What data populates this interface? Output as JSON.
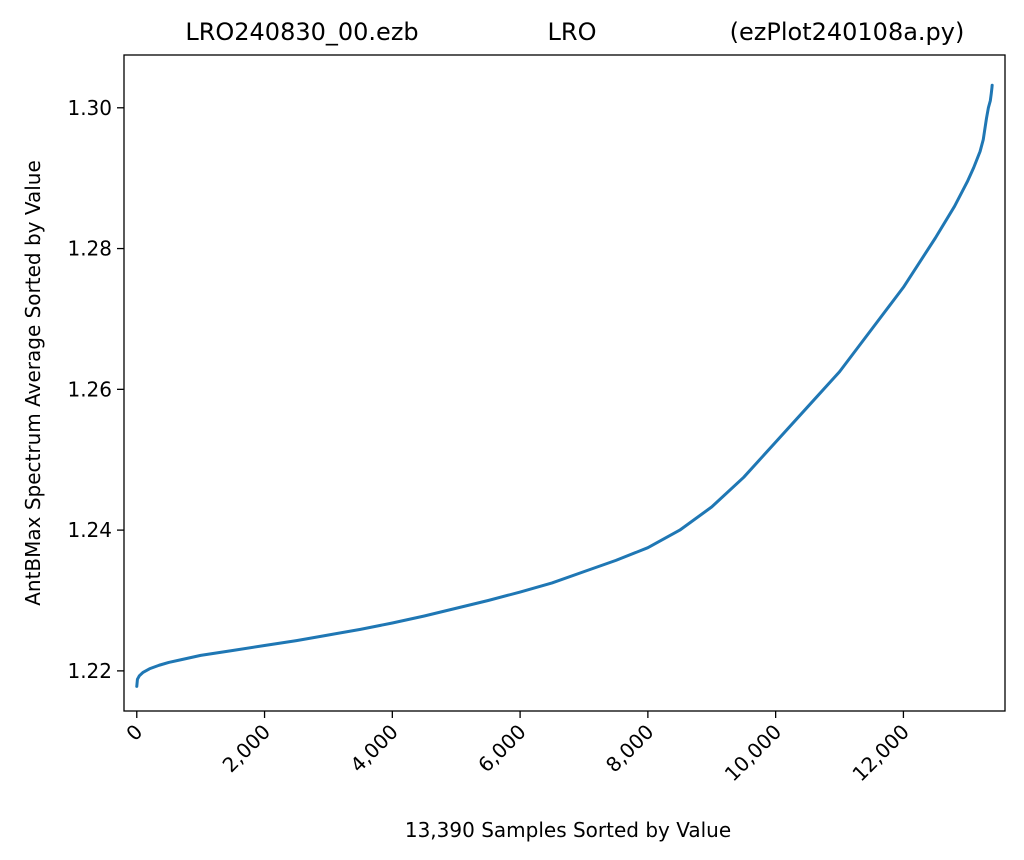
{
  "chart_data": {
    "type": "line",
    "title_parts": [
      "LRO240830_00.ezb",
      "LRO",
      "(ezPlot240108a.py)"
    ],
    "xlabel": "13,390 Samples Sorted by Value",
    "ylabel": "AntBMax Spectrum Average Sorted by Value",
    "xlim": [
      -200,
      13590
    ],
    "ylim": [
      1.2143,
      1.3075
    ],
    "xticks": [
      0,
      2000,
      4000,
      6000,
      8000,
      10000,
      12000
    ],
    "xtick_labels": [
      "0",
      "2,000",
      "4,000",
      "6,000",
      "8,000",
      "10,000",
      "12,000"
    ],
    "yticks": [
      1.22,
      1.24,
      1.26,
      1.28,
      1.3
    ],
    "ytick_labels": [
      "1.22",
      "1.24",
      "1.26",
      "1.28",
      "1.30"
    ],
    "grid": false,
    "line_color": "#1f77b4",
    "series": [
      {
        "x": [
          0,
          10,
          40,
          100,
          200,
          350,
          500,
          700,
          1000,
          1500,
          2000,
          2500,
          3000,
          3500,
          4000,
          4500,
          5000,
          5500,
          6000,
          6500,
          7000,
          7500,
          8000,
          8500,
          9000,
          9500,
          10000,
          10500,
          11000,
          11500,
          12000,
          12500,
          12800,
          13000,
          13100,
          13200,
          13250,
          13300,
          13330,
          13360,
          13375,
          13385,
          13389
        ],
        "y": [
          1.2178,
          1.2188,
          1.2193,
          1.2198,
          1.2203,
          1.2208,
          1.2212,
          1.2216,
          1.2222,
          1.2229,
          1.2236,
          1.2243,
          1.2251,
          1.2259,
          1.2268,
          1.2278,
          1.2289,
          1.23,
          1.2312,
          1.2325,
          1.2341,
          1.2357,
          1.2375,
          1.24,
          1.2433,
          1.2475,
          1.2525,
          1.2575,
          1.2625,
          1.2685,
          1.2745,
          1.2815,
          1.286,
          1.2895,
          1.2915,
          1.2938,
          1.2955,
          1.2985,
          1.3,
          1.301,
          1.302,
          1.3028,
          1.3032
        ]
      }
    ]
  }
}
